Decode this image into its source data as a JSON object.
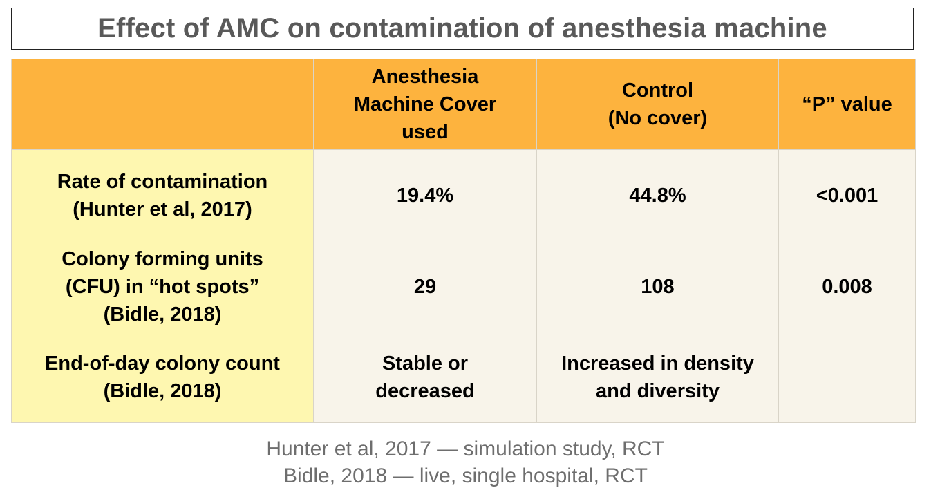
{
  "title": "Effect of AMC on contamination of anesthesia machine",
  "table": {
    "headers": [
      [],
      [
        "Anesthesia",
        "Machine Cover",
        "used"
      ],
      [
        "Control",
        "(No cover)"
      ],
      [
        "“P” value"
      ]
    ],
    "rows": [
      {
        "label": [
          "Rate of contamination",
          "(Hunter et al, 2017)"
        ],
        "amc": [
          "19.4%"
        ],
        "control": [
          "44.8%"
        ],
        "p_value": [
          "<0.001"
        ]
      },
      {
        "label": [
          "Colony forming units",
          "(CFU) in “hot spots”",
          "(Bidle, 2018)"
        ],
        "amc": [
          "29"
        ],
        "control": [
          "108"
        ],
        "p_value": [
          "0.008"
        ]
      },
      {
        "label": [
          "End-of-day colony count",
          "(Bidle, 2018)"
        ],
        "amc": [
          "Stable or",
          "decreased"
        ],
        "control": [
          "Increased in density",
          "and diversity"
        ],
        "p_value": []
      }
    ]
  },
  "footnotes": [
    "Hunter et al, 2017 — simulation study, RCT",
    "Bidle, 2018 — live, single hospital, RCT"
  ],
  "colors": {
    "header_bg": "#fdb33e",
    "label_bg": "#fef7b0",
    "cell_bg": "#f8f4ea",
    "title_text": "#595959",
    "footnote_text": "#6e6e6e"
  }
}
